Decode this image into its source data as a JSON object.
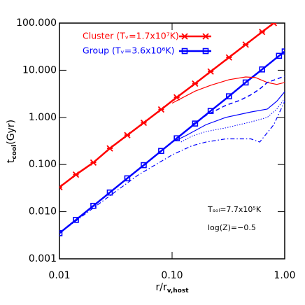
{
  "chart_data": {
    "type": "line",
    "xlabel": {
      "main": "r/r",
      "sub": "v,host"
    },
    "ylabel": {
      "main": "t",
      "sub": "cool",
      "rest": "(Gyr)"
    },
    "xscale": "log",
    "yscale": "log",
    "xlim": [
      0.01,
      1.0
    ],
    "ylim": [
      0.001,
      100
    ],
    "xticks": [
      {
        "value": 0.01,
        "label": "0.01"
      },
      {
        "value": 0.1,
        "label": "0.10"
      },
      {
        "value": 1,
        "label": "1.00"
      }
    ],
    "yticks": [
      {
        "value": 0.001,
        "label": "0.001"
      },
      {
        "value": 0.01,
        "label": "0.010"
      },
      {
        "value": 0.1,
        "label": "0.100"
      },
      {
        "value": 1,
        "label": "1.000"
      },
      {
        "value": 10,
        "label": "10.000"
      },
      {
        "value": 100,
        "label": "100.000"
      }
    ],
    "legend": "top-left",
    "annotations": [
      "Tₛₒₗ=7.7x10⁵K",
      "log(Z)=−0.5"
    ],
    "series": [
      {
        "name": "Cluster (Tᵥ=1.7x10⁷K)",
        "color": "#ff0000",
        "marker": "x",
        "width": 2.5,
        "dash": "solid",
        "x": [
          0.01,
          0.014,
          0.02,
          0.028,
          0.04,
          0.056,
          0.08,
          0.11,
          0.16,
          0.22,
          0.32,
          0.45,
          0.63,
          0.8
        ],
        "values": [
          0.033,
          0.061,
          0.11,
          0.22,
          0.42,
          0.77,
          1.47,
          2.66,
          5.2,
          9.4,
          18.7,
          35,
          65,
          100
        ]
      },
      {
        "name": "Group (Tᵥ=3.6x10⁶K)",
        "color": "#0000ff",
        "marker": "square",
        "width": 2.5,
        "dash": "solid",
        "x": [
          0.01,
          0.014,
          0.02,
          0.028,
          0.04,
          0.056,
          0.08,
          0.11,
          0.16,
          0.22,
          0.32,
          0.45,
          0.63,
          0.89,
          1.0
        ],
        "values": [
          0.0035,
          0.0067,
          0.0133,
          0.0255,
          0.051,
          0.097,
          0.194,
          0.36,
          0.74,
          1.37,
          2.8,
          5.5,
          10.4,
          20.2,
          25
        ]
      },
      {
        "color": "#ff0000",
        "width": 1.2,
        "dash": "solid",
        "x": [
          0.1,
          0.16,
          0.22,
          0.32,
          0.45,
          0.55,
          0.7,
          0.85,
          1.0
        ],
        "values": [
          2.0,
          3.6,
          4.8,
          6.3,
          7.2,
          7.0,
          5.5,
          5.0,
          5.5
        ]
      },
      {
        "color": "#0000ff",
        "width": 1.2,
        "dash": "solid",
        "x": [
          0.1,
          0.13,
          0.2,
          0.3,
          0.5,
          0.7,
          0.85,
          1.0
        ],
        "values": [
          0.3,
          0.4,
          0.7,
          1.0,
          1.3,
          1.5,
          2.2,
          3.5
        ]
      },
      {
        "color": "#0000ff",
        "width": 1.5,
        "dash": "6,4",
        "x": [
          0.15,
          0.2,
          0.3,
          0.4,
          0.5,
          0.6,
          0.7,
          0.85,
          1.0
        ],
        "values": [
          0.7,
          1.1,
          1.8,
          2.3,
          3.0,
          4.0,
          5.5,
          6.5,
          7.5
        ]
      },
      {
        "color": "#0000ff",
        "width": 1.0,
        "dash": "1.5,2",
        "x": [
          0.12,
          0.15,
          0.2,
          0.3,
          0.5,
          0.7,
          0.85,
          1.0
        ],
        "values": [
          0.3,
          0.4,
          0.5,
          0.6,
          0.8,
          1.0,
          1.5,
          2.5
        ]
      },
      {
        "color": "#0000ff",
        "width": 1.2,
        "dash": "6,3,1.5,3",
        "x": [
          0.01,
          0.02,
          0.05,
          0.1,
          0.15,
          0.2,
          0.3,
          0.5,
          0.6,
          0.8,
          1.0
        ],
        "values": [
          0.0035,
          0.012,
          0.06,
          0.16,
          0.25,
          0.3,
          0.35,
          0.35,
          0.3,
          0.7,
          2.2
        ]
      }
    ]
  }
}
